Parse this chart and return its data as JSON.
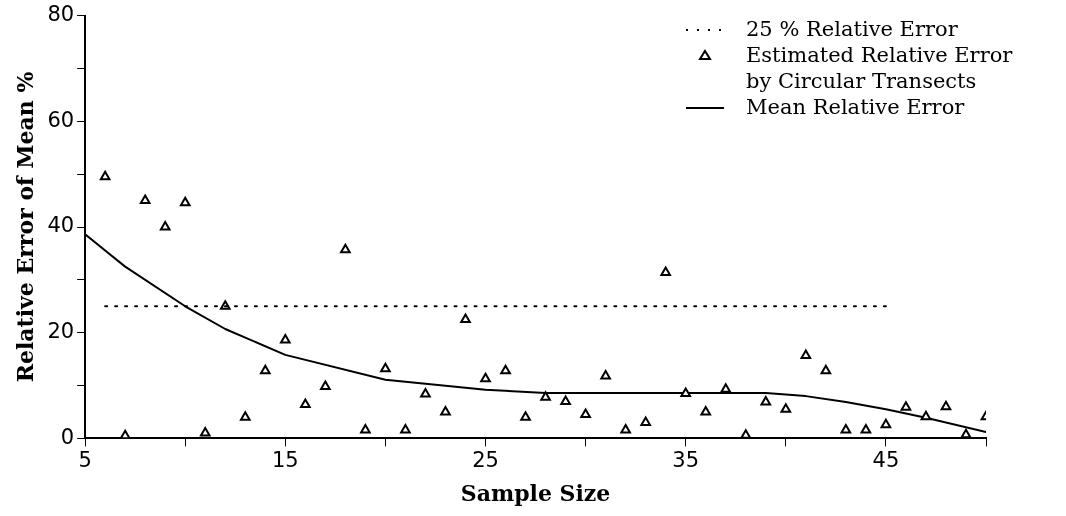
{
  "chart_data": {
    "type": "scatter",
    "xlabel": "Sample Size",
    "ylabel": "Relative Error of Mean %",
    "xlim": [
      5,
      50
    ],
    "xticks": [
      5,
      {
        "value": 10,
        "label": null
      },
      15,
      {
        "value": 20,
        "label": null
      },
      25,
      {
        "value": 30,
        "label": null
      },
      35,
      {
        "value": 40,
        "label": null
      },
      45,
      {
        "value": 50,
        "label": null
      }
    ],
    "ylim": [
      0,
      80
    ],
    "yticks": [
      0,
      {
        "value": 10,
        "label": null
      },
      20,
      {
        "value": 30,
        "label": null
      },
      40,
      {
        "value": 50,
        "label": null
      },
      60,
      {
        "value": 70,
        "label": null
      },
      80
    ],
    "grid": false,
    "legend": "top right",
    "series": [
      {
        "name": "25 % Relative Error",
        "type": "line",
        "line_style": "dotted",
        "marker": "none",
        "color": "#000000",
        "x": [
          6,
          45
        ],
        "values": [
          25,
          25
        ]
      },
      {
        "name": "Estimated Relative Error by Circular Transects",
        "type": "scatter",
        "marker": "triangle",
        "color": "#000000",
        "x": [
          6,
          7,
          8,
          9,
          10,
          11,
          12,
          13,
          14,
          15,
          16,
          17,
          18,
          19,
          20,
          21,
          22,
          23,
          24,
          25,
          26,
          27,
          28,
          29,
          30,
          31,
          32,
          33,
          34,
          35,
          36,
          37,
          38,
          39,
          40,
          41,
          42,
          43,
          44,
          45,
          46,
          47,
          48,
          49,
          50
        ],
        "values": [
          49.5,
          0.5,
          45,
          40,
          44.6,
          1,
          25,
          4,
          12.8,
          18.6,
          6.4,
          9.8,
          35.7,
          1.6,
          13.2,
          1.6,
          8.4,
          5,
          22.5,
          11.3,
          12.8,
          4,
          7.8,
          7,
          4.5,
          11.8,
          1.6,
          3,
          31.4,
          8.5,
          5,
          9.3,
          0.6,
          6.9,
          5.5,
          15.7,
          12.8,
          1.6,
          1.6,
          2.6,
          5.9,
          4.1,
          6,
          0.7,
          4.1
        ]
      },
      {
        "name": "Mean Relative Error",
        "type": "line",
        "line_style": "solid",
        "marker": "none",
        "color": "#000000",
        "x": [
          5,
          7,
          10,
          12,
          15,
          20,
          25,
          28,
          35,
          39,
          41,
          43,
          45,
          47,
          50
        ],
        "values": [
          38.6,
          32.5,
          25,
          20.7,
          15.8,
          11.1,
          9.2,
          8.6,
          8.6,
          8.6,
          8,
          6.9,
          5.5,
          3.9,
          1.2
        ]
      }
    ]
  }
}
